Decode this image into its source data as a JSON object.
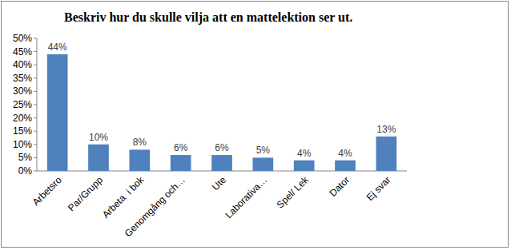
{
  "chart_data": {
    "type": "bar",
    "title": "Beskriv hur du skulle vilja att en mattelektion ser ut.",
    "categories": [
      "Arbetsro",
      "Par/Grupp",
      "Arbeta  i bok",
      "Genomgång och…",
      "Ute",
      "Laborativa…",
      "Spel/ Lek",
      "Dator",
      "Ej svar"
    ],
    "values": [
      44,
      10,
      8,
      6,
      6,
      5,
      4,
      4,
      13
    ],
    "value_labels": [
      "44%",
      "10%",
      "8%",
      "6%",
      "6%",
      "5%",
      "4%",
      "4%",
      "13%"
    ],
    "color": "#4f81bd",
    "ylim": [
      0,
      50
    ],
    "yticks": [
      {
        "value": 0,
        "label": "0%"
      },
      {
        "value": 5,
        "label": "5%"
      },
      {
        "value": 10,
        "label": "10%"
      },
      {
        "value": 15,
        "label": "15%"
      },
      {
        "value": 20,
        "label": "20%"
      },
      {
        "value": 25,
        "label": "25%"
      },
      {
        "value": 30,
        "label": "30%"
      },
      {
        "value": 35,
        "label": "35%"
      },
      {
        "value": 40,
        "label": "40%"
      },
      {
        "value": 45,
        "label": "45%"
      },
      {
        "value": 50,
        "label": "50%"
      }
    ],
    "grid": false,
    "data_labels": true
  }
}
